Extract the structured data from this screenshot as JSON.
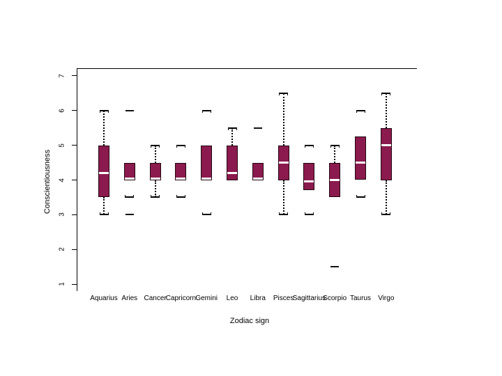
{
  "chart_data": {
    "type": "boxplot",
    "title": "",
    "xlabel": "Zodiac sign",
    "ylabel": "Conscientiousness",
    "ylim": [
      0.8,
      7.2
    ],
    "yticks": [
      1,
      2,
      3,
      4,
      5,
      6,
      7
    ],
    "grid": false,
    "legend": "none",
    "categories": [
      "Aquarius",
      "Aries",
      "Cancer",
      "Capricorn",
      "Gemini",
      "Leo",
      "Libra",
      "Pisces",
      "Sagittarius",
      "Scorpio",
      "Taurus",
      "Virgo"
    ],
    "boxes": [
      {
        "sign": "Aquarius",
        "whisker_low": 3.0,
        "q1": 3.5,
        "median": 4.2,
        "q3": 5.0,
        "whisker_high": 6.0,
        "dotted_low": true,
        "dotted_high": true,
        "outliers": []
      },
      {
        "sign": "Aries",
        "whisker_low": 3.5,
        "q1": 4.0,
        "median": 4.05,
        "q3": 4.5,
        "whisker_high": null,
        "dotted_low": false,
        "dotted_high": false,
        "outliers": [
          3.0,
          6.0
        ]
      },
      {
        "sign": "Cancer",
        "whisker_low": 3.5,
        "q1": 4.0,
        "median": 4.05,
        "q3": 4.5,
        "whisker_high": 5.0,
        "dotted_low": true,
        "dotted_high": true,
        "outliers": []
      },
      {
        "sign": "Capricorn",
        "whisker_low": 3.5,
        "q1": 4.0,
        "median": 4.05,
        "q3": 4.5,
        "whisker_high": 5.0,
        "dotted_low": false,
        "dotted_high": false,
        "outliers": []
      },
      {
        "sign": "Gemini",
        "whisker_low": 3.0,
        "q1": 4.0,
        "median": 4.05,
        "q3": 5.0,
        "whisker_high": 6.0,
        "dotted_low": false,
        "dotted_high": false,
        "outliers": []
      },
      {
        "sign": "Leo",
        "whisker_low": null,
        "q1": 4.0,
        "median": 4.2,
        "q3": 5.0,
        "whisker_high": 5.5,
        "dotted_low": false,
        "dotted_high": true,
        "outliers": []
      },
      {
        "sign": "Libra",
        "whisker_low": null,
        "q1": 4.0,
        "median": 4.05,
        "q3": 4.5,
        "whisker_high": null,
        "dotted_low": false,
        "dotted_high": false,
        "outliers": [
          5.5
        ]
      },
      {
        "sign": "Pisces",
        "whisker_low": 3.0,
        "q1": 4.0,
        "median": 4.5,
        "q3": 5.0,
        "whisker_high": 6.5,
        "dotted_low": true,
        "dotted_high": true,
        "outliers": []
      },
      {
        "sign": "Sagittarius",
        "whisker_low": 3.0,
        "q1": 3.7,
        "median": 3.95,
        "q3": 4.5,
        "whisker_high": 5.0,
        "dotted_low": false,
        "dotted_high": false,
        "outliers": []
      },
      {
        "sign": "Scorpio",
        "whisker_low": null,
        "q1": 3.5,
        "median": 4.0,
        "q3": 4.5,
        "whisker_high": 5.0,
        "dotted_low": false,
        "dotted_high": true,
        "outliers": [
          1.5
        ]
      },
      {
        "sign": "Taurus",
        "whisker_low": 3.5,
        "q1": 4.0,
        "median": 4.5,
        "q3": 5.25,
        "whisker_high": 6.0,
        "dotted_low": false,
        "dotted_high": false,
        "outliers": []
      },
      {
        "sign": "Virgo",
        "whisker_low": 3.0,
        "q1": 4.0,
        "median": 5.0,
        "q3": 5.5,
        "whisker_high": 6.5,
        "dotted_low": true,
        "dotted_high": true,
        "outliers": []
      }
    ],
    "colors": {
      "box_fill": "#8B1A4E",
      "box_border": "#22060f",
      "median": "#ffffff",
      "whisker": "#000000",
      "axis": "#000000",
      "text": "#000000",
      "background": "#ffffff"
    }
  }
}
